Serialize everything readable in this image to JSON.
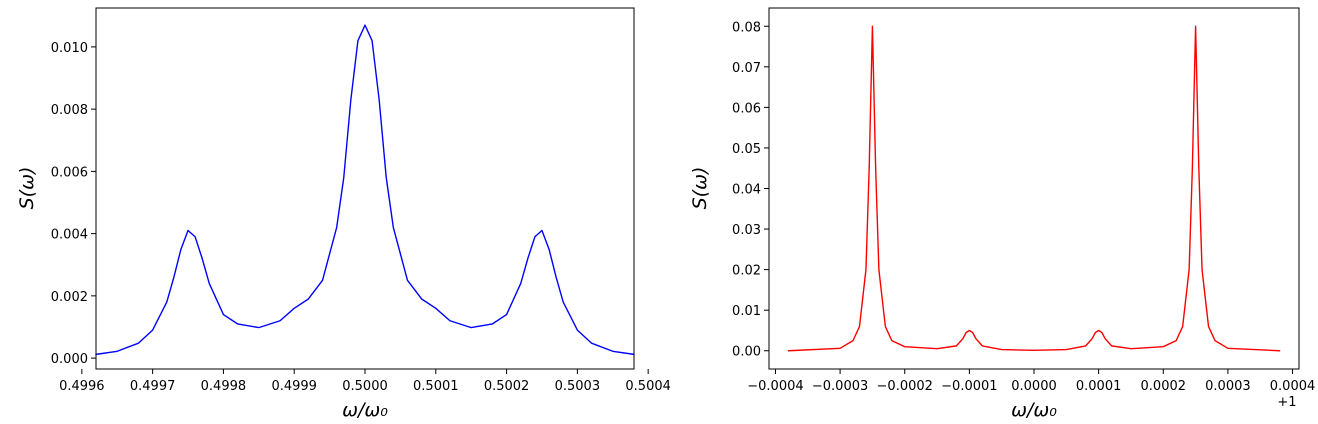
{
  "chart_data": [
    {
      "type": "line",
      "title": "",
      "xlabel": "ω/ω₀",
      "ylabel": "S(ω)",
      "xlim": [
        0.49962,
        0.50038
      ],
      "ylim": [
        -0.00035,
        0.01125
      ],
      "x_ticks": [
        0.4996,
        0.4997,
        0.4998,
        0.4999,
        0.5,
        0.5001,
        0.5002,
        0.5003,
        0.5004
      ],
      "x_tick_labels": [
        "0.4996",
        "0.4997",
        "0.4998",
        "0.4999",
        "0.5000",
        "0.5001",
        "0.5002",
        "0.5003",
        "0.5004"
      ],
      "y_ticks": [
        0.0,
        0.002,
        0.004,
        0.006,
        0.008,
        0.01
      ],
      "y_tick_labels": [
        "0.000",
        "0.002",
        "0.004",
        "0.006",
        "0.008",
        "0.010"
      ],
      "grid": false,
      "legend": "none",
      "series": [
        {
          "color": "#0000ff",
          "x": [
            0.49962,
            0.49965,
            0.49968,
            0.4997,
            0.49972,
            0.49973,
            0.49974,
            0.49975,
            0.49976,
            0.49977,
            0.49978,
            0.4998,
            0.49982,
            0.49985,
            0.49988,
            0.4999,
            0.49992,
            0.49994,
            0.49996,
            0.49997,
            0.49998,
            0.49999,
            0.5,
            0.50001,
            0.50002,
            0.50003,
            0.50004,
            0.50006,
            0.50008,
            0.5001,
            0.50012,
            0.50015,
            0.50018,
            0.5002,
            0.50022,
            0.50023,
            0.50024,
            0.50025,
            0.50026,
            0.50027,
            0.50028,
            0.5003,
            0.50032,
            0.50035,
            0.50038
          ],
          "y": [
            0.00012,
            0.00022,
            0.00048,
            0.0009,
            0.0018,
            0.0026,
            0.0035,
            0.0041,
            0.0039,
            0.0032,
            0.0024,
            0.0014,
            0.0011,
            0.00098,
            0.0012,
            0.0016,
            0.0019,
            0.0025,
            0.0042,
            0.0058,
            0.0083,
            0.0102,
            0.0107,
            0.0102,
            0.0083,
            0.0058,
            0.0042,
            0.0025,
            0.0019,
            0.0016,
            0.0012,
            0.00098,
            0.0011,
            0.0014,
            0.0024,
            0.0032,
            0.0039,
            0.0041,
            0.0035,
            0.0026,
            0.0018,
            0.0009,
            0.00048,
            0.00022,
            0.00012
          ]
        }
      ]
    },
    {
      "type": "line",
      "title": "",
      "xlabel": "ω/ω₀",
      "ylabel": "S(ω)",
      "x_offset_label": "+1",
      "xlim": [
        -0.00041,
        0.00041
      ],
      "ylim": [
        -0.0045,
        0.0845
      ],
      "x_ticks": [
        -0.0004,
        -0.0003,
        -0.0002,
        -0.0001,
        0.0,
        0.0001,
        0.0002,
        0.0003,
        0.0004
      ],
      "x_tick_labels": [
        "−0.0004",
        "−0.0003",
        "−0.0002",
        "−0.0001",
        "0.0000",
        "0.0001",
        "0.0002",
        "0.0003",
        "0.0004"
      ],
      "y_ticks": [
        0.0,
        0.01,
        0.02,
        0.03,
        0.04,
        0.05,
        0.06,
        0.07,
        0.08
      ],
      "y_tick_labels": [
        "0.00",
        "0.01",
        "0.02",
        "0.03",
        "0.04",
        "0.05",
        "0.06",
        "0.07",
        "0.08"
      ],
      "grid": false,
      "legend": "none",
      "series": [
        {
          "color": "#ff0000",
          "x": [
            -0.00038,
            -0.0003,
            -0.00028,
            -0.00027,
            -0.00026,
            -0.000255,
            -0.00025,
            -0.000245,
            -0.00024,
            -0.00023,
            -0.00022,
            -0.0002,
            -0.00015,
            -0.00012,
            -0.00011,
            -0.000105,
            -0.0001,
            -9.5e-05,
            -9e-05,
            -8e-05,
            -5e-05,
            0.0,
            5e-05,
            8e-05,
            9e-05,
            9.5e-05,
            0.0001,
            0.000105,
            0.00011,
            0.00012,
            0.00015,
            0.0002,
            0.00022,
            0.00023,
            0.00024,
            0.000245,
            0.00025,
            0.000255,
            0.00026,
            0.00027,
            0.00028,
            0.0003,
            0.00038
          ],
          "y": [
            0.0,
            0.0006,
            0.0025,
            0.006,
            0.02,
            0.045,
            0.08,
            0.045,
            0.02,
            0.006,
            0.0025,
            0.001,
            0.0005,
            0.0012,
            0.003,
            0.0045,
            0.005,
            0.0045,
            0.003,
            0.0012,
            0.0003,
            0.0001,
            0.0003,
            0.0012,
            0.003,
            0.0045,
            0.005,
            0.0045,
            0.003,
            0.0012,
            0.0005,
            0.001,
            0.0025,
            0.006,
            0.02,
            0.045,
            0.08,
            0.045,
            0.02,
            0.006,
            0.0025,
            0.0006,
            0.0
          ]
        }
      ]
    }
  ]
}
